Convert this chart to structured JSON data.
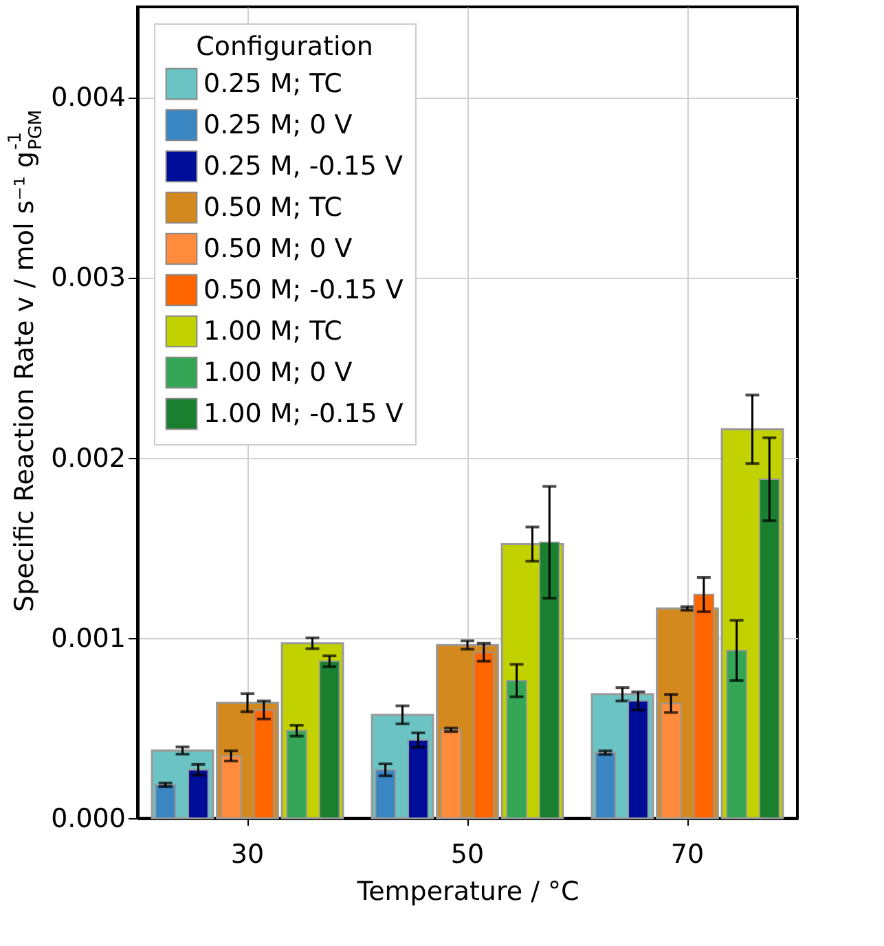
{
  "chart_data": {
    "type": "bar",
    "xlabel": "Temperature / °C",
    "ylabel": "Specific Reaction Rate v / mol s⁻¹ g$_{PGM}$$^{-1}$",
    "legend_title": "Configuration",
    "categories": [
      "30",
      "50",
      "70"
    ],
    "series": [
      {
        "name": "0.25 M; TC",
        "color": "#6cc3c3",
        "values": [
          0.000375,
          0.000573,
          0.000687
        ],
        "errors": [
          2e-05,
          5e-05,
          3.7e-05
        ]
      },
      {
        "name": "0.25 M; 0 V",
        "color": "#3a86c2",
        "values": [
          0.000185,
          0.000268,
          0.000363
        ],
        "errors": [
          1e-05,
          3.3e-05,
          1e-05
        ]
      },
      {
        "name": "0.25 M, -0.15 V",
        "color": "#000d99",
        "values": [
          0.000268,
          0.000433,
          0.00065
        ],
        "errors": [
          3e-05,
          4e-05,
          5e-05
        ]
      },
      {
        "name": "0.50 M; TC",
        "color": "#d4891f",
        "values": [
          0.00064,
          0.00096,
          0.001163
        ],
        "errors": [
          5e-05,
          2.3e-05,
          1e-05
        ]
      },
      {
        "name": "0.50 M; 0 V",
        "color": "#ff8c3c",
        "values": [
          0.000345,
          0.00049,
          0.000636
        ],
        "errors": [
          2.8e-05,
          1e-05,
          5e-05
        ]
      },
      {
        "name": "0.50 M; -0.15 V",
        "color": "#ff6600",
        "values": [
          0.0006,
          0.00092,
          0.00124
        ],
        "errors": [
          5e-05,
          5e-05,
          9.5e-05
        ]
      },
      {
        "name": "1.00 M; TC",
        "color": "#c2d100",
        "values": [
          0.00097,
          0.00152,
          0.002157
        ],
        "errors": [
          3e-05,
          9.5e-05,
          0.00019
        ]
      },
      {
        "name": "1.00 M; 0 V",
        "color": "#35a656",
        "values": [
          0.000485,
          0.000763,
          0.00093
        ],
        "errors": [
          3e-05,
          9e-05,
          0.000167
        ]
      },
      {
        "name": "1.00 M; -0.15 V",
        "color": "#1a8030",
        "values": [
          0.00087,
          0.00153,
          0.00188
        ],
        "errors": [
          3e-05,
          0.00031,
          0.00023
        ]
      }
    ],
    "ylim": [
      0,
      0.0045
    ],
    "yticks": [
      {
        "value": 0,
        "label": "0.000"
      },
      {
        "value": 0.001,
        "label": "0.001"
      },
      {
        "value": 0.002,
        "label": "0.002"
      },
      {
        "value": 0.003,
        "label": "0.003"
      },
      {
        "value": 0.004,
        "label": "0.004"
      }
    ],
    "grid": true,
    "legend": "top left"
  }
}
